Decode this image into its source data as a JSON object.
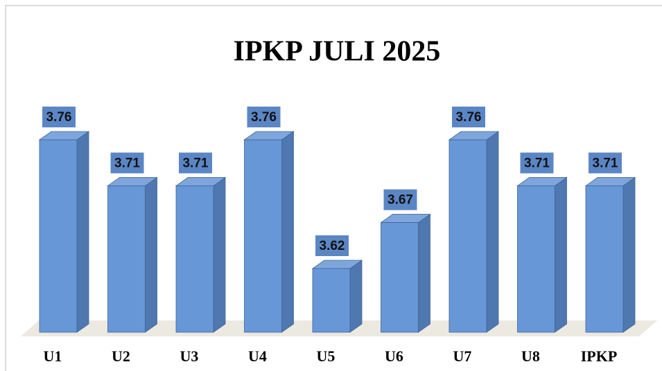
{
  "chart_data": {
    "type": "bar3d",
    "title": "IPKP JULI 2025",
    "categories": [
      "U1",
      "U2",
      "U3",
      "U4",
      "U5",
      "U6",
      "U7",
      "U8",
      "IPKP"
    ],
    "values": [
      3.76,
      3.71,
      3.71,
      3.76,
      3.62,
      3.67,
      3.76,
      3.71,
      3.71
    ],
    "color": "#6797d6"
  }
}
